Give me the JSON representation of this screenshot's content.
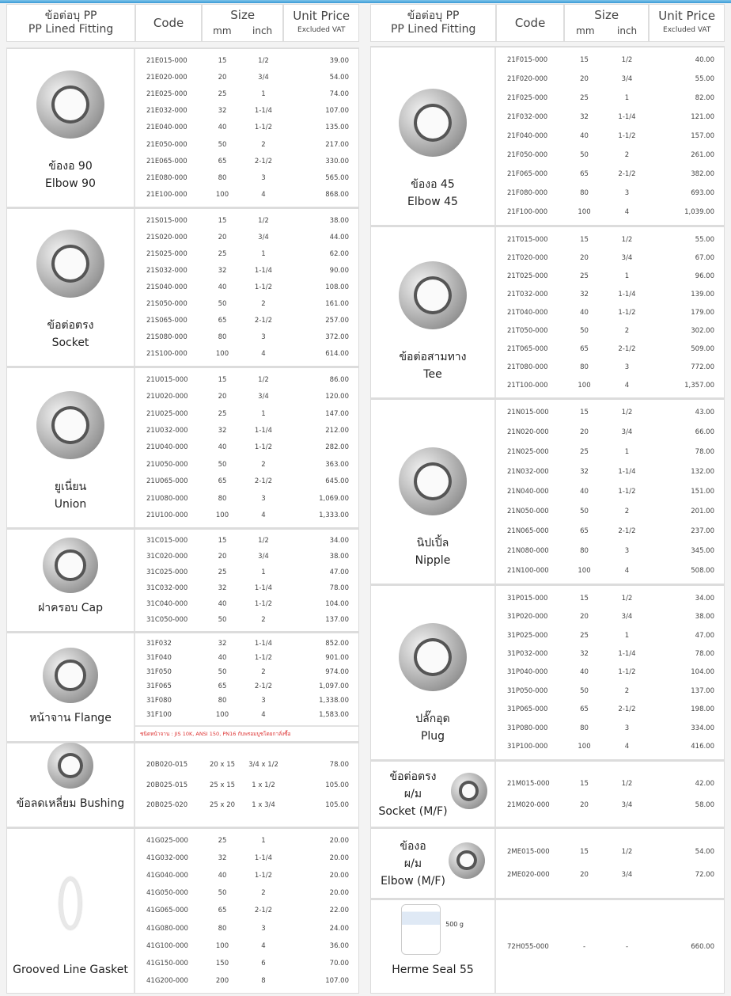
{
  "header": {
    "name_th": "ข้อต่อบุ PP",
    "name_en": "PP Lined Fitting",
    "code": "Code",
    "size": "Size",
    "mm": "mm",
    "inch": "inch",
    "price": "Unit Price",
    "price_sub": "Excluded VAT"
  },
  "accent_color": "#3a9ad6",
  "note_color": "#dd3333",
  "left": [
    {
      "id": "elbow-90",
      "icon": "elbow-fitting",
      "labels": [
        "ข้องอ 90",
        "Elbow 90"
      ],
      "rows": [
        [
          "21E015-000",
          "15",
          "1/2",
          "39.00"
        ],
        [
          "21E020-000",
          "20",
          "3/4",
          "54.00"
        ],
        [
          "21E025-000",
          "25",
          "1",
          "74.00"
        ],
        [
          "21E032-000",
          "32",
          "1-1/4",
          "107.00"
        ],
        [
          "21E040-000",
          "40",
          "1-1/2",
          "135.00"
        ],
        [
          "21E050-000",
          "50",
          "2",
          "217.00"
        ],
        [
          "21E065-000",
          "65",
          "2-1/2",
          "330.00"
        ],
        [
          "21E080-000",
          "80",
          "3",
          "565.00"
        ],
        [
          "21E100-000",
          "100",
          "4",
          "868.00"
        ]
      ]
    },
    {
      "id": "socket",
      "icon": "socket-fitting",
      "labels": [
        "ข้อต่อตรง",
        "Socket"
      ],
      "rows": [
        [
          "21S015-000",
          "15",
          "1/2",
          "38.00"
        ],
        [
          "21S020-000",
          "20",
          "3/4",
          "44.00"
        ],
        [
          "21S025-000",
          "25",
          "1",
          "62.00"
        ],
        [
          "21S032-000",
          "32",
          "1-1/4",
          "90.00"
        ],
        [
          "21S040-000",
          "40",
          "1-1/2",
          "108.00"
        ],
        [
          "21S050-000",
          "50",
          "2",
          "161.00"
        ],
        [
          "21S065-000",
          "65",
          "2-1/2",
          "257.00"
        ],
        [
          "21S080-000",
          "80",
          "3",
          "372.00"
        ],
        [
          "21S100-000",
          "100",
          "4",
          "614.00"
        ]
      ]
    },
    {
      "id": "union",
      "icon": "union-fitting",
      "labels": [
        "ยูเนี่ยน",
        "Union"
      ],
      "rows": [
        [
          "21U015-000",
          "15",
          "1/2",
          "86.00"
        ],
        [
          "21U020-000",
          "20",
          "3/4",
          "120.00"
        ],
        [
          "21U025-000",
          "25",
          "1",
          "147.00"
        ],
        [
          "21U032-000",
          "32",
          "1-1/4",
          "212.00"
        ],
        [
          "21U040-000",
          "40",
          "1-1/2",
          "282.00"
        ],
        [
          "21U050-000",
          "50",
          "2",
          "363.00"
        ],
        [
          "21U065-000",
          "65",
          "2-1/2",
          "645.00"
        ],
        [
          "21U080-000",
          "80",
          "3",
          "1,069.00"
        ],
        [
          "21U100-000",
          "100",
          "4",
          "1,333.00"
        ]
      ]
    },
    {
      "id": "cap",
      "icon": "cap-fitting",
      "labels": [
        "ฝาครอบ  Cap"
      ],
      "rows": [
        [
          "31C015-000",
          "15",
          "1/2",
          "34.00"
        ],
        [
          "31C020-000",
          "20",
          "3/4",
          "38.00"
        ],
        [
          "31C025-000",
          "25",
          "1",
          "47.00"
        ],
        [
          "31C032-000",
          "32",
          "1-1/4",
          "78.00"
        ],
        [
          "31C040-000",
          "40",
          "1-1/2",
          "104.00"
        ],
        [
          "31C050-000",
          "50",
          "2",
          "137.00"
        ]
      ]
    },
    {
      "id": "flange",
      "icon": "flange-fitting",
      "labels": [
        "หน้าจาน  Flange"
      ],
      "note": "ชนิดหน้าจาน : JIS 10K, ANSI 150, PN16 กับพรอมบูชโดยกาลั่งซื้อ",
      "rows": [
        [
          "31F032",
          "32",
          "1-1/4",
          "852.00"
        ],
        [
          "31F040",
          "40",
          "1-1/2",
          "901.00"
        ],
        [
          "31F050",
          "50",
          "2",
          "974.00"
        ],
        [
          "31F065",
          "65",
          "2-1/2",
          "1,097.00"
        ],
        [
          "31F080",
          "80",
          "3",
          "1,338.00"
        ],
        [
          "31F100",
          "100",
          "4",
          "1,583.00"
        ]
      ]
    },
    {
      "id": "bushing",
      "icon": "bushing-fitting",
      "labels": [
        "ข้อลดเหลี่ยม  Bushing"
      ],
      "rows": [
        [
          "20B020-015",
          "20 x 15",
          "3/4 x 1/2",
          "78.00"
        ],
        [
          "20B025-015",
          "25 x 15",
          "1 x 1/2",
          "105.00"
        ],
        [
          "20B025-020",
          "25 x 20",
          "1 x 3/4",
          "105.00"
        ]
      ]
    },
    {
      "id": "gasket",
      "icon": "gasket-ring",
      "labels": [
        "Grooved Line Gasket"
      ],
      "rows": [
        [
          "41G025-000",
          "25",
          "1",
          "20.00"
        ],
        [
          "41G032-000",
          "32",
          "1-1/4",
          "20.00"
        ],
        [
          "41G040-000",
          "40",
          "1-1/2",
          "20.00"
        ],
        [
          "41G050-000",
          "50",
          "2",
          "20.00"
        ],
        [
          "41G065-000",
          "65",
          "2-1/2",
          "22.00"
        ],
        [
          "41G080-000",
          "80",
          "3",
          "24.00"
        ],
        [
          "41G100-000",
          "100",
          "4",
          "36.00"
        ],
        [
          "41G150-000",
          "150",
          "6",
          "70.00"
        ],
        [
          "41G200-000",
          "200",
          "8",
          "107.00"
        ]
      ]
    }
  ],
  "right": [
    {
      "id": "elbow-45",
      "icon": "elbow-fitting",
      "labels": [
        "ข้องอ 45",
        "Elbow 45"
      ],
      "rows": [
        [
          "21F015-000",
          "15",
          "1/2",
          "40.00"
        ],
        [
          "21F020-000",
          "20",
          "3/4",
          "55.00"
        ],
        [
          "21F025-000",
          "25",
          "1",
          "82.00"
        ],
        [
          "21F032-000",
          "32",
          "1-1/4",
          "121.00"
        ],
        [
          "21F040-000",
          "40",
          "1-1/2",
          "157.00"
        ],
        [
          "21F050-000",
          "50",
          "2",
          "261.00"
        ],
        [
          "21F065-000",
          "65",
          "2-1/2",
          "382.00"
        ],
        [
          "21F080-000",
          "80",
          "3",
          "693.00"
        ],
        [
          "21F100-000",
          "100",
          "4",
          "1,039.00"
        ]
      ]
    },
    {
      "id": "tee",
      "icon": "tee-fitting",
      "labels": [
        "ข้อต่อสามทาง",
        "Tee"
      ],
      "rows": [
        [
          "21T015-000",
          "15",
          "1/2",
          "55.00"
        ],
        [
          "21T020-000",
          "20",
          "3/4",
          "67.00"
        ],
        [
          "21T025-000",
          "25",
          "1",
          "96.00"
        ],
        [
          "21T032-000",
          "32",
          "1-1/4",
          "139.00"
        ],
        [
          "21T040-000",
          "40",
          "1-1/2",
          "179.00"
        ],
        [
          "21T050-000",
          "50",
          "2",
          "302.00"
        ],
        [
          "21T065-000",
          "65",
          "2-1/2",
          "509.00"
        ],
        [
          "21T080-000",
          "80",
          "3",
          "772.00"
        ],
        [
          "21T100-000",
          "100",
          "4",
          "1,357.00"
        ]
      ]
    },
    {
      "id": "nipple",
      "icon": "nipple-fitting",
      "labels": [
        "นิปเปิ้ล",
        "Nipple"
      ],
      "rows": [
        [
          "21N015-000",
          "15",
          "1/2",
          "43.00"
        ],
        [
          "21N020-000",
          "20",
          "3/4",
          "66.00"
        ],
        [
          "21N025-000",
          "25",
          "1",
          "78.00"
        ],
        [
          "21N032-000",
          "32",
          "1-1/4",
          "132.00"
        ],
        [
          "21N040-000",
          "40",
          "1-1/2",
          "151.00"
        ],
        [
          "21N050-000",
          "50",
          "2",
          "201.00"
        ],
        [
          "21N065-000",
          "65",
          "2-1/2",
          "237.00"
        ],
        [
          "21N080-000",
          "80",
          "3",
          "345.00"
        ],
        [
          "21N100-000",
          "100",
          "4",
          "508.00"
        ]
      ]
    },
    {
      "id": "plug",
      "icon": "plug-fitting",
      "labels": [
        "ปลั๊กอุด",
        "Plug"
      ],
      "rows": [
        [
          "31P015-000",
          "15",
          "1/2",
          "34.00"
        ],
        [
          "31P020-000",
          "20",
          "3/4",
          "38.00"
        ],
        [
          "31P025-000",
          "25",
          "1",
          "47.00"
        ],
        [
          "31P032-000",
          "32",
          "1-1/4",
          "78.00"
        ],
        [
          "31P040-000",
          "40",
          "1-1/2",
          "104.00"
        ],
        [
          "31P050-000",
          "50",
          "2",
          "137.00"
        ],
        [
          "31P065-000",
          "65",
          "2-1/2",
          "198.00"
        ],
        [
          "31P080-000",
          "80",
          "3",
          "334.00"
        ],
        [
          "31P100-000",
          "100",
          "4",
          "416.00"
        ]
      ]
    },
    {
      "id": "socket-mf",
      "icon": "socket-fitting",
      "side": true,
      "labels": [
        "ข้อต่อตรง",
        "ผ/ม",
        "Socket (M/F)"
      ],
      "rows": [
        [
          "21M015-000",
          "15",
          "1/2",
          "42.00"
        ],
        [
          "21M020-000",
          "20",
          "3/4",
          "58.00"
        ]
      ]
    },
    {
      "id": "elbow-mf",
      "icon": "elbow-fitting",
      "side": true,
      "labels": [
        "ข้องอ",
        "ผ/ม",
        "Elbow (M/F)"
      ],
      "rows": [
        [
          "2ME015-000",
          "15",
          "1/2",
          "54.00"
        ],
        [
          "2ME020-000",
          "20",
          "3/4",
          "72.00"
        ]
      ]
    },
    {
      "id": "herme-seal",
      "icon": "sealant-can",
      "can_label": "500 g",
      "labels": [
        "Herme Seal 55"
      ],
      "rows": [
        [
          "72H055-000",
          "-",
          "-",
          "660.00"
        ]
      ]
    }
  ]
}
